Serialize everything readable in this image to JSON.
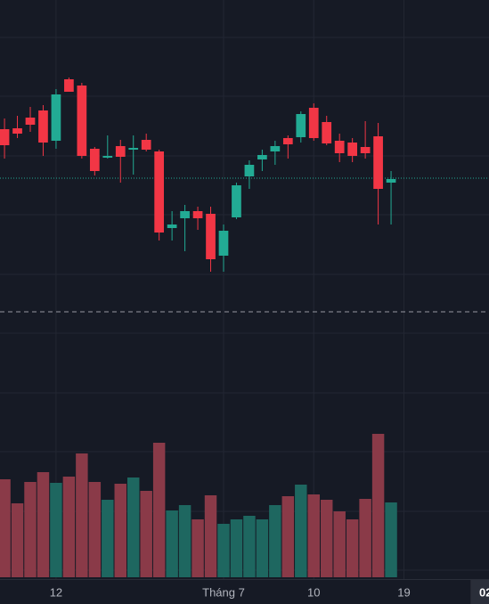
{
  "chart_data": {
    "type": "candlestick",
    "up_color": "#22ab94",
    "down_color": "#f23645",
    "volume_up_color": "#1e6760",
    "volume_down_color": "#8a3a48",
    "ohlc": [
      {
        "open": 255,
        "high": 267,
        "low": 222,
        "close": 237
      },
      {
        "open": 256,
        "high": 270,
        "low": 245,
        "close": 250
      },
      {
        "open": 268,
        "high": 280,
        "low": 252,
        "close": 260
      },
      {
        "open": 276,
        "high": 282,
        "low": 225,
        "close": 240
      },
      {
        "open": 242,
        "high": 300,
        "low": 233,
        "close": 294
      },
      {
        "open": 311,
        "high": 313,
        "low": 297,
        "close": 297
      },
      {
        "open": 304,
        "high": 307,
        "low": 222,
        "close": 225
      },
      {
        "open": 233,
        "high": 235,
        "low": 203,
        "close": 208
      },
      {
        "open": 223,
        "high": 248,
        "low": 222,
        "close": 225
      },
      {
        "open": 236,
        "high": 243,
        "low": 195,
        "close": 224
      },
      {
        "open": 232,
        "high": 248,
        "low": 204,
        "close": 234
      },
      {
        "open": 243,
        "high": 250,
        "low": 230,
        "close": 232
      },
      {
        "open": 230,
        "high": 232,
        "low": 130,
        "close": 139
      },
      {
        "open": 144,
        "high": 163,
        "low": 130,
        "close": 148
      },
      {
        "open": 155,
        "high": 170,
        "low": 118,
        "close": 163
      },
      {
        "open": 163,
        "high": 168,
        "low": 142,
        "close": 155
      },
      {
        "open": 160,
        "high": 168,
        "low": 95,
        "close": 109
      },
      {
        "open": 113,
        "high": 148,
        "low": 95,
        "close": 141
      },
      {
        "open": 156,
        "high": 195,
        "low": 154,
        "close": 192
      },
      {
        "open": 202,
        "high": 220,
        "low": 188,
        "close": 215
      },
      {
        "open": 221,
        "high": 232,
        "low": 208,
        "close": 226
      },
      {
        "open": 230,
        "high": 242,
        "low": 215,
        "close": 236
      },
      {
        "open": 245,
        "high": 248,
        "low": 222,
        "close": 238
      },
      {
        "open": 246,
        "high": 275,
        "low": 240,
        "close": 272
      },
      {
        "open": 279,
        "high": 284,
        "low": 242,
        "close": 245
      },
      {
        "open": 263,
        "high": 270,
        "low": 237,
        "close": 239
      },
      {
        "open": 242,
        "high": 250,
        "low": 218,
        "close": 228
      },
      {
        "open": 240,
        "high": 245,
        "low": 218,
        "close": 225
      },
      {
        "open": 235,
        "high": 264,
        "low": 222,
        "close": 228
      },
      {
        "open": 247,
        "high": 262,
        "low": 148,
        "close": 188
      },
      {
        "open": 195,
        "high": 208,
        "low": 148,
        "close": 199
      }
    ],
    "volume": [
      110,
      83,
      107,
      118,
      106,
      113,
      139,
      107,
      87,
      105,
      112,
      97,
      151,
      75,
      81,
      65,
      92,
      60,
      65,
      69,
      65,
      81,
      91,
      104,
      93,
      87,
      74,
      65,
      88,
      161,
      84
    ],
    "ylim": [
      50,
      400
    ],
    "volume_ylim": [
      0,
      200
    ],
    "xlim": [
      -0.35,
      37.6
    ],
    "xticks": [
      {
        "value": 4,
        "label": "12"
      },
      {
        "value": 17,
        "label": "Tháng 7"
      },
      {
        "value": 24,
        "label": "10"
      },
      {
        "value": 31,
        "label": "19"
      }
    ],
    "crosshair_x": {
      "value": 37,
      "label": "02"
    },
    "price_lines": [
      {
        "value": 200,
        "color": "#22ab94",
        "style": "dotted"
      },
      {
        "value": 50,
        "color": "#9598a1",
        "style": "dashed"
      }
    ]
  }
}
